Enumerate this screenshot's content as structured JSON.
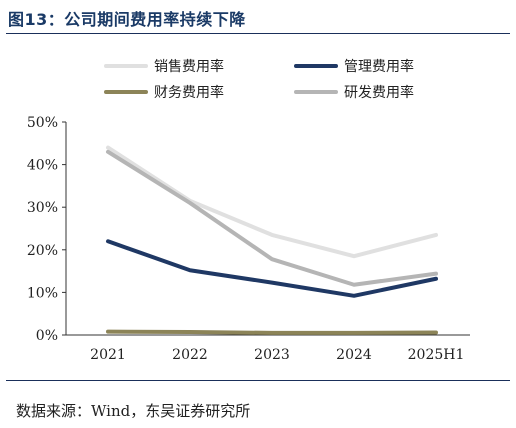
{
  "figure": {
    "title": "图13：公司期间费用率持续下降",
    "source": "数据来源：Wind，东吴证券研究所"
  },
  "chart_data": {
    "type": "line",
    "title": "",
    "xlabel": "",
    "ylabel": "",
    "x": [
      "2021",
      "2022",
      "2023",
      "2024",
      "2025H1"
    ],
    "ylim": [
      0,
      50
    ],
    "yticks": [
      0,
      10,
      20,
      30,
      40,
      50
    ],
    "ytick_labels": [
      "0%",
      "10%",
      "20%",
      "30%",
      "40%",
      "50%"
    ],
    "y_unit": "%",
    "grid": false,
    "legend_position": "top",
    "series": [
      {
        "name": "销售费用率",
        "values": [
          44.0,
          31.5,
          23.5,
          18.5,
          23.5
        ],
        "color": "#e0e0e0"
      },
      {
        "name": "管理费用率",
        "values": [
          22.0,
          15.2,
          12.3,
          9.2,
          13.2
        ],
        "color": "#1f3864"
      },
      {
        "name": "财务费用率",
        "values": [
          0.8,
          0.7,
          0.5,
          0.5,
          0.6
        ],
        "color": "#8c8458"
      },
      {
        "name": "研发费用率",
        "values": [
          43.0,
          31.0,
          17.8,
          11.8,
          14.4
        ],
        "color": "#b5b5b5"
      }
    ]
  }
}
